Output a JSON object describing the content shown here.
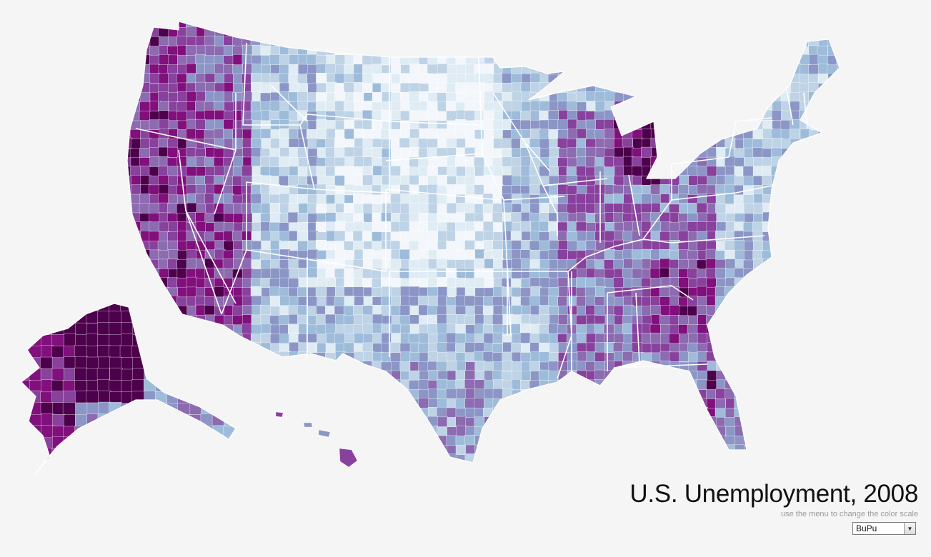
{
  "header": {
    "title": "U.S. Unemployment, 2008",
    "hint": "use the menu to change the color scale"
  },
  "color_scale": {
    "selected": "BuPu",
    "name": "BuPu",
    "colors": [
      "#f3f7fb",
      "#e0ecf4",
      "#bfd3e6",
      "#9ebcda",
      "#8c96c6",
      "#8c6bb1",
      "#88419d",
      "#810f7c",
      "#4d004b"
    ]
  },
  "icons": {
    "dropdown_arrow": "chevron-down-icon"
  }
}
